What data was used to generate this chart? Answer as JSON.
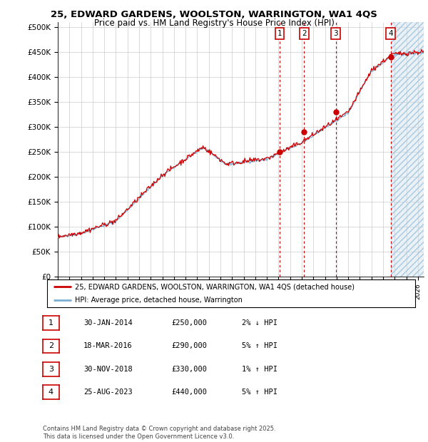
{
  "title_line1": "25, EDWARD GARDENS, WOOLSTON, WARRINGTON, WA1 4QS",
  "title_line2": "Price paid vs. HM Land Registry's House Price Index (HPI)",
  "ylabel_ticks": [
    "£0",
    "£50K",
    "£100K",
    "£150K",
    "£200K",
    "£250K",
    "£300K",
    "£350K",
    "£400K",
    "£450K",
    "£500K"
  ],
  "ytick_values": [
    0,
    50000,
    100000,
    150000,
    200000,
    250000,
    300000,
    350000,
    400000,
    450000,
    500000
  ],
  "xmin": 1995.0,
  "xmax": 2026.5,
  "sale_dates": [
    2014.08,
    2016.21,
    2018.92,
    2023.65
  ],
  "sale_prices": [
    250000,
    290000,
    330000,
    440000
  ],
  "sale_labels": [
    "1",
    "2",
    "3",
    "4"
  ],
  "legend_line1": "25, EDWARD GARDENS, WOOLSTON, WARRINGTON, WA1 4QS (detached house)",
  "legend_line2": "HPI: Average price, detached house, Warrington",
  "table_rows": [
    [
      "1",
      "30-JAN-2014",
      "£250,000",
      "2% ↓ HPI"
    ],
    [
      "2",
      "18-MAR-2016",
      "£290,000",
      "5% ↑ HPI"
    ],
    [
      "3",
      "30-NOV-2018",
      "£330,000",
      "1% ↑ HPI"
    ],
    [
      "4",
      "25-AUG-2023",
      "£440,000",
      "5% ↑ HPI"
    ]
  ],
  "footer": "Contains HM Land Registry data © Crown copyright and database right 2025.\nThis data is licensed under the Open Government Licence v3.0.",
  "red_color": "#cc0000",
  "blue_color": "#7ab0d4",
  "bg_color": "#ffffff",
  "hatch_color": "#c8daea",
  "grid_color": "#cccccc"
}
